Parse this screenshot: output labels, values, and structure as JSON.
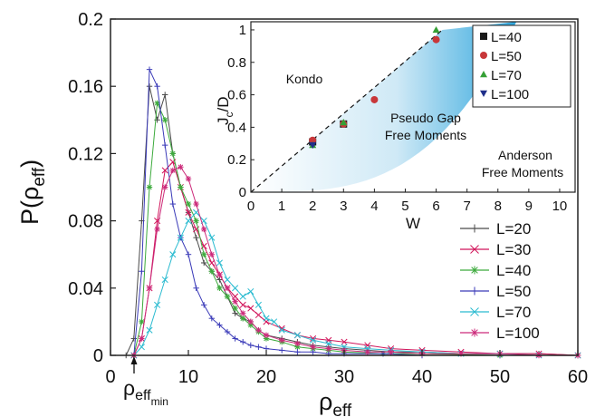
{
  "chart_data": [
    {
      "type": "line",
      "xlabel": "ρ",
      "xlabel_sub": "eff",
      "ylabel": "P(ρ",
      "ylabel_sub": "eff",
      "ylabel_close": ")",
      "xlim": [
        0,
        60
      ],
      "ylim": [
        0,
        0.2
      ],
      "xticks": [
        0,
        10,
        20,
        30,
        40,
        50,
        60
      ],
      "yticks": [
        0,
        0.04,
        0.08,
        0.12,
        0.16,
        0.2
      ],
      "ytick_labels": [
        "0",
        "0.04",
        "0.08",
        "0.12",
        "0.16",
        "0.2"
      ],
      "annotation": {
        "text": "ρ",
        "sub": "eff",
        "subsub": "min",
        "x": 3
      },
      "legend": "bottom-right",
      "series": [
        {
          "name": "L=20",
          "color": "#4a4a4a",
          "marker": "plus",
          "x": [
            2,
            3,
            4,
            5,
            6,
            7,
            8,
            9,
            10,
            11,
            12,
            13,
            14,
            15,
            16,
            17,
            18,
            19,
            20,
            22,
            24,
            26,
            28,
            30,
            33,
            36,
            40,
            45,
            50,
            55,
            60
          ],
          "y": [
            0,
            0.01,
            0.08,
            0.16,
            0.14,
            0.155,
            0.12,
            0.1,
            0.085,
            0.07,
            0.055,
            0.05,
            0.045,
            0.035,
            0.025,
            0.022,
            0.02,
            0.015,
            0.012,
            0.01,
            0.008,
            0.006,
            0.005,
            0.004,
            0.003,
            0.002,
            0.002,
            0.001,
            0.001,
            0.001,
            0
          ]
        },
        {
          "name": "L=30",
          "color": "#d1145a",
          "marker": "x",
          "x": [
            3,
            4,
            5,
            6,
            7,
            8,
            9,
            10,
            11,
            12,
            13,
            14,
            15,
            16,
            17,
            18,
            19,
            20,
            22,
            24,
            26,
            28,
            30,
            33,
            36,
            40,
            45,
            50,
            55,
            60
          ],
          "y": [
            0,
            0.01,
            0.04,
            0.08,
            0.11,
            0.115,
            0.1,
            0.085,
            0.075,
            0.065,
            0.055,
            0.048,
            0.04,
            0.035,
            0.03,
            0.028,
            0.024,
            0.02,
            0.016,
            0.012,
            0.01,
            0.009,
            0.008,
            0.006,
            0.004,
            0.003,
            0.002,
            0.001,
            0.001,
            0
          ]
        },
        {
          "name": "L=40",
          "color": "#3caa3c",
          "marker": "star",
          "x": [
            3,
            4,
            5,
            6,
            7,
            8,
            9,
            10,
            11,
            12,
            13,
            14,
            15,
            16,
            17,
            18,
            19,
            20,
            22,
            24,
            26,
            28,
            30,
            35,
            40,
            50,
            60
          ],
          "y": [
            0,
            0.02,
            0.1,
            0.15,
            0.14,
            0.12,
            0.1,
            0.09,
            0.08,
            0.06,
            0.05,
            0.04,
            0.035,
            0.028,
            0.022,
            0.018,
            0.014,
            0.01,
            0.008,
            0.005,
            0.004,
            0.003,
            0.002,
            0.001,
            0.001,
            0,
            0
          ]
        },
        {
          "name": "L=50",
          "color": "#3a3ab8",
          "marker": "plus",
          "x": [
            3,
            4,
            5,
            6,
            7,
            8,
            9,
            10,
            11,
            12,
            13,
            14,
            15,
            16,
            17,
            18,
            19,
            20,
            22,
            24,
            26,
            28,
            30,
            35,
            40,
            50,
            60
          ],
          "y": [
            0,
            0.05,
            0.17,
            0.16,
            0.125,
            0.09,
            0.07,
            0.06,
            0.04,
            0.03,
            0.022,
            0.018,
            0.014,
            0.01,
            0.008,
            0.006,
            0.005,
            0.004,
            0.003,
            0.002,
            0.002,
            0.001,
            0.001,
            0.001,
            0,
            0,
            0
          ]
        },
        {
          "name": "L=70",
          "color": "#2bbbd0",
          "marker": "x",
          "x": [
            3,
            4,
            5,
            6,
            7,
            8,
            9,
            10,
            11,
            12,
            13,
            14,
            15,
            16,
            17,
            18,
            19,
            20,
            21,
            22,
            24,
            26,
            28,
            30,
            33,
            36,
            40,
            45,
            50,
            55,
            60
          ],
          "y": [
            0,
            0.005,
            0.015,
            0.03,
            0.045,
            0.06,
            0.07,
            0.08,
            0.085,
            0.08,
            0.07,
            0.055,
            0.045,
            0.04,
            0.035,
            0.038,
            0.03,
            0.022,
            0.02,
            0.015,
            0.012,
            0.009,
            0.007,
            0.005,
            0.004,
            0.003,
            0.002,
            0.001,
            0.001,
            0,
            0
          ]
        },
        {
          "name": "L=100",
          "color": "#cc2a7a",
          "marker": "star",
          "x": [
            3,
            4,
            5,
            6,
            7,
            8,
            9,
            10,
            11,
            12,
            13,
            14,
            15,
            16,
            17,
            18,
            19,
            20,
            22,
            24,
            26,
            28,
            30,
            33,
            36,
            40,
            45,
            50,
            55,
            60
          ],
          "y": [
            0,
            0.01,
            0.04,
            0.075,
            0.1,
            0.11,
            0.112,
            0.105,
            0.09,
            0.075,
            0.06,
            0.048,
            0.04,
            0.032,
            0.025,
            0.02,
            0.015,
            0.012,
            0.009,
            0.007,
            0.005,
            0.004,
            0.003,
            0.002,
            0.002,
            0.001,
            0.001,
            0.001,
            0,
            0
          ]
        }
      ]
    },
    {
      "type": "scatter",
      "xlabel": "W",
      "ylabel": "J",
      "ylabel_sub": "c",
      "ylabel_tail": "/D",
      "xlim": [
        0,
        10.5
      ],
      "ylim": [
        0,
        1.05
      ],
      "xticks": [
        0,
        1,
        2,
        3,
        4,
        5,
        6,
        7,
        8,
        9,
        10
      ],
      "yticks": [
        0,
        0.2,
        0.4,
        0.6,
        0.8,
        1
      ],
      "ytick_labels": [
        "0",
        "0.2",
        "0.4",
        "0.6",
        "0.8",
        "1"
      ],
      "regions": {
        "kondo": "Kondo",
        "pseudo_gap_1": "Pseudo Gap",
        "pseudo_gap_2": "Free Moments",
        "anderson_1": "Anderson",
        "anderson_2": "Free Moments"
      },
      "guide_line": {
        "style": "dashed",
        "from": [
          0,
          0
        ],
        "to": [
          6.2,
          1.0
        ]
      },
      "shaded_region_color": "#1e9fd8",
      "legend": "top-right",
      "series": [
        {
          "name": "L=40",
          "marker": "square",
          "color": "#1a1a1a",
          "x": [
            2,
            3
          ],
          "y": [
            0.31,
            0.42
          ]
        },
        {
          "name": "L=50",
          "marker": "circle",
          "color": "#c8373a",
          "x": [
            2,
            3,
            4,
            6
          ],
          "y": [
            0.32,
            0.42,
            0.57,
            0.94
          ]
        },
        {
          "name": "L=70",
          "marker": "triangle-up",
          "color": "#35a035",
          "x": [
            2,
            3,
            6
          ],
          "y": [
            0.29,
            0.43,
            1.0
          ]
        },
        {
          "name": "L=100",
          "marker": "triangle-down",
          "color": "#1f2f8a",
          "x": [
            2
          ],
          "y": [
            0.29
          ]
        }
      ]
    }
  ]
}
